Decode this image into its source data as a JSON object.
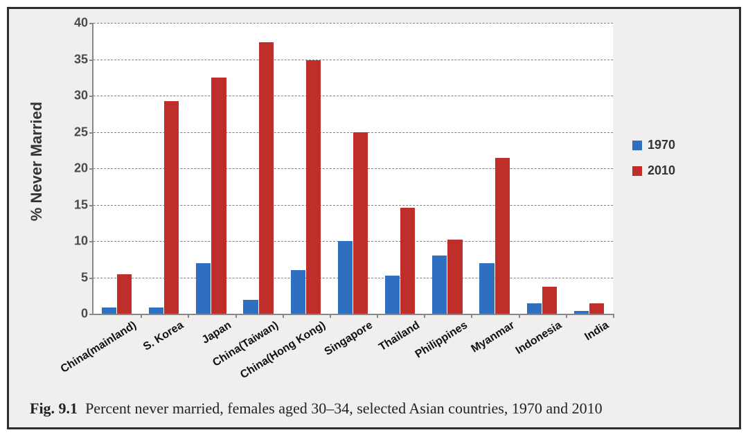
{
  "chart": {
    "type": "bar",
    "ylabel": "% Never Married",
    "ylim": [
      0,
      40
    ],
    "ytick_step": 5,
    "background_color": "#ffffff",
    "frame_background": "#f0efed",
    "axis_color": "#888888",
    "grid_color": "#7f7f7f",
    "grid_dash": "dashed",
    "label_fontsize": 22,
    "tick_fontsize": 18,
    "category_fontsize": 16,
    "category_label_rotation_deg": -32,
    "bar_gap_ratio": 0.35,
    "categories": [
      "China(mainland)",
      "S. Korea",
      "Japan",
      "China(Taiwan)",
      "China(Hong Kong)",
      "Singapore",
      "Thailand",
      "Philippines",
      "Myanmar",
      "Indonesia",
      "India"
    ],
    "series": [
      {
        "name": "1970",
        "color": "#2e6fbf",
        "values": [
          0.9,
          0.9,
          7.0,
          1.9,
          6.0,
          10.0,
          5.2,
          8.0,
          7.0,
          1.4,
          0.4
        ]
      },
      {
        "name": "2010",
        "color": "#be2f2b",
        "values": [
          5.4,
          29.2,
          32.5,
          37.3,
          34.9,
          25.0,
          14.6,
          10.2,
          21.4,
          3.7,
          1.4
        ]
      }
    ],
    "legend": {
      "items": [
        {
          "label": "1970",
          "color": "#2e6fbf"
        },
        {
          "label": "2010",
          "color": "#be2f2b"
        }
      ]
    }
  },
  "caption": {
    "prefix": "Fig. 9.1",
    "text": "Percent never married, females aged 30–34, selected Asian countries, 1970 and 2010",
    "fontsize": 22
  }
}
